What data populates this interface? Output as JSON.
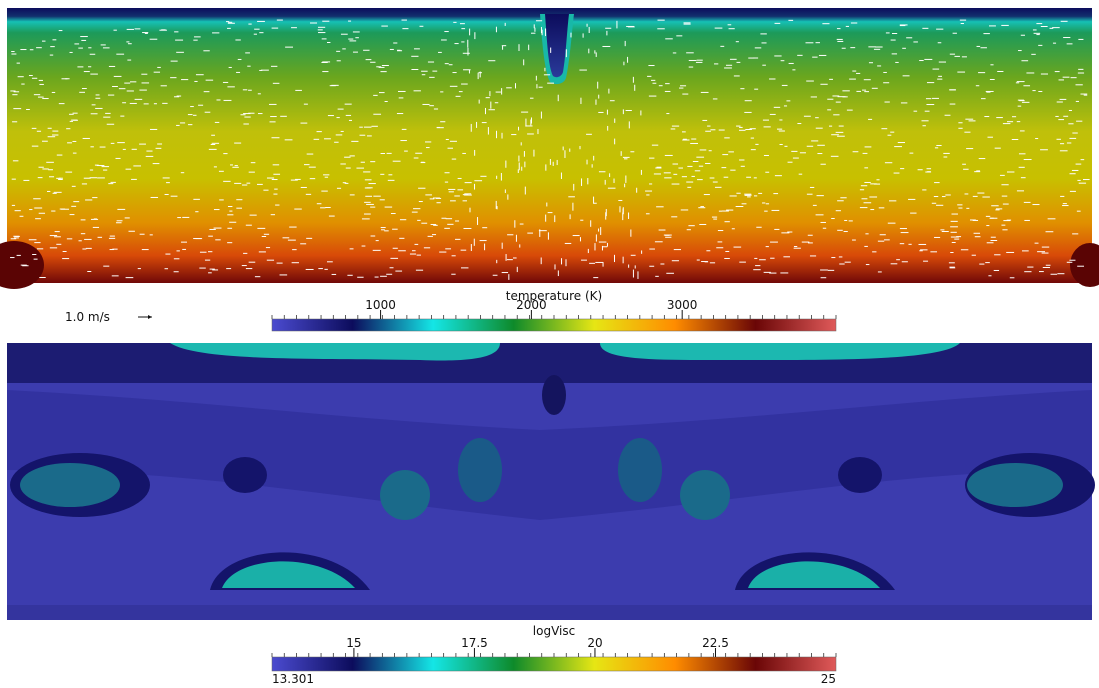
{
  "chart_data": [
    {
      "type": "colorbar",
      "title": "temperature (K)",
      "xlim": [
        280,
        4020
      ],
      "xticks": [
        1000,
        2000,
        3000
      ],
      "colormap": [
        "#4b4bd0",
        "#0c0c5c",
        "#14e6e6",
        "#0e8a2a",
        "#e6e614",
        "#ff8c00",
        "#6a0606",
        "#e05a5a"
      ]
    },
    {
      "type": "colorbar",
      "title": "logVisc",
      "xlim": [
        13.301,
        25
      ],
      "xticks": [
        15,
        17.5,
        20,
        22.5
      ],
      "colormap": [
        "#4b4bd0",
        "#0c0c5c",
        "#14e6e6",
        "#0e8a2a",
        "#e6e614",
        "#ff8c00",
        "#6a0606",
        "#e05a5a"
      ]
    }
  ],
  "vector_legend": "1.0 m/s"
}
